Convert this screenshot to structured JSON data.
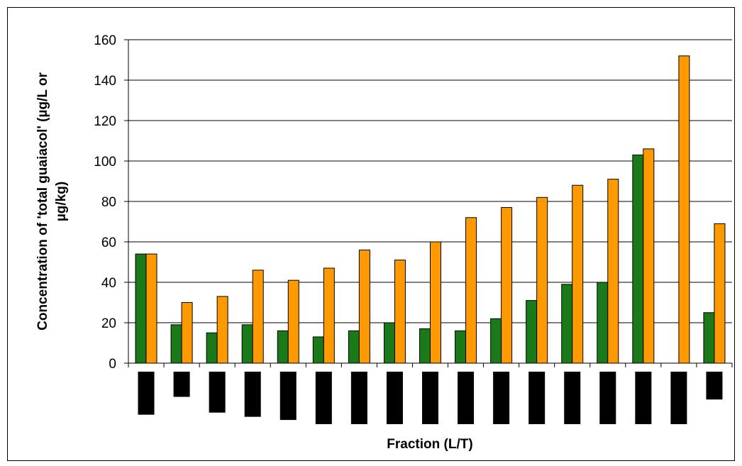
{
  "chart_data": {
    "type": "bar",
    "title": "",
    "xlabel": "Fraction (L/T)",
    "ylabel_line1": "Concentration of 'total guaiacol' (µg/L or",
    "ylabel_line2": "µg/kg)",
    "ylim": [
      0,
      160
    ],
    "yticks": [
      0,
      20,
      40,
      60,
      80,
      100,
      120,
      140,
      160
    ],
    "grid": true,
    "legend": "none",
    "category_count": 17,
    "category_label_heights": [
      0.82,
      0.48,
      0.78,
      0.86,
      0.92,
      1.0,
      1.0,
      1.0,
      1.0,
      1.0,
      1.0,
      1.0,
      1.0,
      1.0,
      1.0,
      1.0,
      0.53
    ],
    "series": [
      {
        "color": "#1a7a1a",
        "values": [
          54,
          19,
          15,
          19,
          16,
          13,
          16,
          20,
          17,
          16,
          22,
          31,
          39,
          40,
          103,
          0,
          25
        ]
      },
      {
        "color": "#ff9900",
        "values": [
          54,
          30,
          33,
          46,
          41,
          47,
          56,
          51,
          60,
          72,
          77,
          82,
          88,
          91,
          106,
          152,
          69
        ]
      }
    ]
  }
}
